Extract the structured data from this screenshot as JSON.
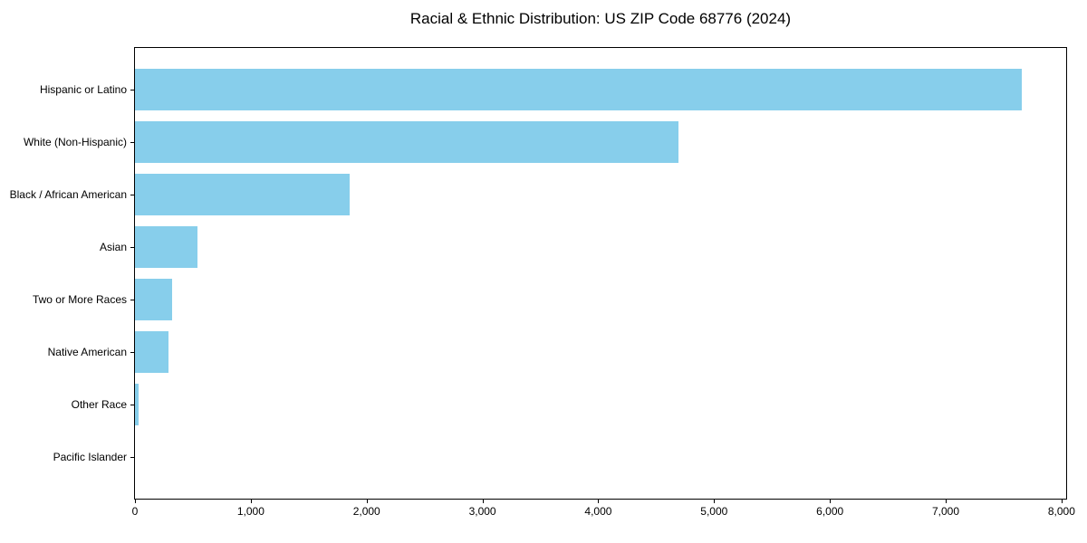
{
  "chart_data": {
    "type": "bar",
    "orientation": "horizontal",
    "title": "Racial & Ethnic Distribution: US ZIP Code 68776 (2024)",
    "categories": [
      "Hispanic or Latino",
      "White (Non-Hispanic)",
      "Black / African American",
      "Asian",
      "Two or More Races",
      "Native American",
      "Other Race",
      "Pacific Islander"
    ],
    "values": [
      7660,
      4690,
      1850,
      540,
      320,
      290,
      35,
      0
    ],
    "xlabel": "",
    "ylabel": "",
    "xlim": [
      0,
      8040
    ],
    "x_ticks": [
      0,
      1000,
      2000,
      3000,
      4000,
      5000,
      6000,
      7000,
      8000
    ],
    "x_tick_labels": [
      "0",
      "1,000",
      "2,000",
      "3,000",
      "4,000",
      "5,000",
      "6,000",
      "7,000",
      "8,000"
    ],
    "grid": false,
    "legend": false,
    "bar_color": "#87CEEB",
    "background_color": "#FFFFFF",
    "spine_color": "#000000"
  }
}
